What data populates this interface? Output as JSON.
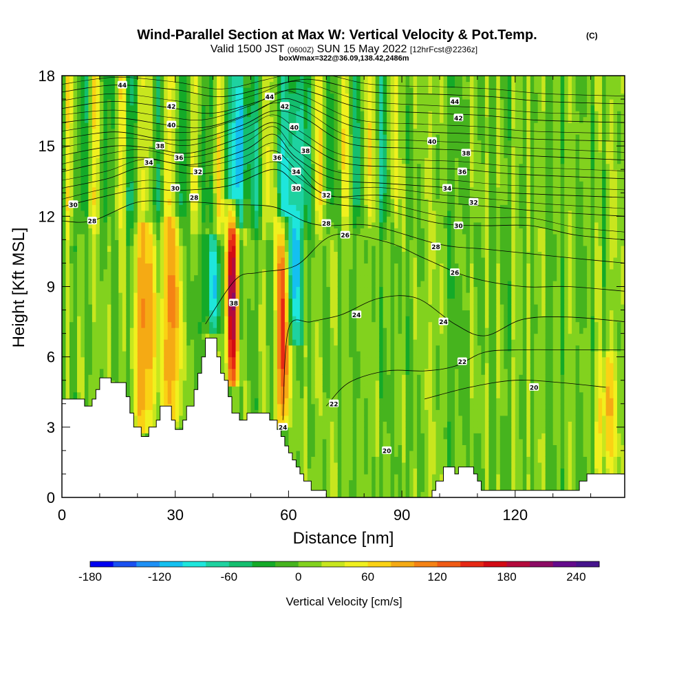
{
  "header": {
    "title": "Wind-Parallel Section at Max W: Vertical Velocity & Pot.Temp.",
    "copyright": "(C)",
    "valid_a": "Valid 1500 JST",
    "valid_b": "(0600Z)",
    "valid_c": "SUN 15 May 2022",
    "valid_d": "[12hrFcst@2236z]",
    "subline": "boxWmax=322@36.09,138.42,2486m"
  },
  "chart_data": {
    "type": "heatmap",
    "xlabel": "Distance [nm]",
    "ylabel": "Height [Kft MSL]",
    "xlim": [
      0,
      149
    ],
    "ylim": [
      0,
      18
    ],
    "x_ticks": [
      0,
      30,
      60,
      90,
      120
    ],
    "y_ticks": [
      0,
      3,
      6,
      9,
      12,
      15,
      18
    ],
    "colorbar": {
      "label": "Vertical Velocity [cm/s]",
      "min": -180,
      "max": 260,
      "step": 20,
      "tick_values": [
        -180,
        -120,
        -60,
        0,
        60,
        120,
        180,
        240
      ],
      "colors": [
        "#0000f0",
        "#1a50f0",
        "#1e90f5",
        "#14c0f0",
        "#1ee6dc",
        "#1ed2a0",
        "#14be6e",
        "#14aa28",
        "#46b41e",
        "#82d21e",
        "#c8e61e",
        "#f0f01e",
        "#fad214",
        "#f5aa14",
        "#f58214",
        "#f05a14",
        "#e62814",
        "#d20a14",
        "#b40a3c",
        "#8c0a64",
        "#640a8c",
        "#46148c"
      ]
    },
    "terrain_kft": [
      [
        0,
        4.2
      ],
      [
        6,
        4.2
      ],
      [
        6,
        3.9
      ],
      [
        8,
        3.9
      ],
      [
        8,
        4.2
      ],
      [
        9,
        4.2
      ],
      [
        9,
        4.6
      ],
      [
        10,
        4.6
      ],
      [
        10,
        5.1
      ],
      [
        13,
        5.1
      ],
      [
        13,
        4.9
      ],
      [
        17,
        4.9
      ],
      [
        17,
        4.3
      ],
      [
        18,
        4.3
      ],
      [
        18,
        3.6
      ],
      [
        19,
        3.6
      ],
      [
        19,
        3.0
      ],
      [
        21,
        3.0
      ],
      [
        21,
        2.6
      ],
      [
        23,
        2.6
      ],
      [
        23,
        3.0
      ],
      [
        25,
        3.0
      ],
      [
        25,
        3.3
      ],
      [
        26,
        3.3
      ],
      [
        26,
        3.9
      ],
      [
        29,
        3.9
      ],
      [
        29,
        3.3
      ],
      [
        30,
        3.3
      ],
      [
        30,
        2.9
      ],
      [
        32,
        2.9
      ],
      [
        32,
        3.3
      ],
      [
        33,
        3.3
      ],
      [
        33,
        3.9
      ],
      [
        35,
        3.9
      ],
      [
        35,
        4.6
      ],
      [
        36,
        4.6
      ],
      [
        36,
        5.3
      ],
      [
        37,
        5.3
      ],
      [
        37,
        6.0
      ],
      [
        38,
        6.0
      ],
      [
        38,
        6.8
      ],
      [
        41,
        6.8
      ],
      [
        41,
        6.0
      ],
      [
        42,
        6.0
      ],
      [
        42,
        5.3
      ],
      [
        43,
        5.3
      ],
      [
        43,
        5.0
      ],
      [
        44,
        5.0
      ],
      [
        44,
        4.3
      ],
      [
        45,
        4.3
      ],
      [
        45,
        3.6
      ],
      [
        46,
        3.6
      ],
      [
        46,
        3.6
      ],
      [
        47,
        3.6
      ],
      [
        47,
        3.3
      ],
      [
        49,
        3.3
      ],
      [
        49,
        3.6
      ],
      [
        50,
        3.6
      ],
      [
        50,
        3.6
      ],
      [
        55,
        3.6
      ],
      [
        55,
        3.3
      ],
      [
        57,
        3.3
      ],
      [
        57,
        2.9
      ],
      [
        58,
        2.9
      ],
      [
        58,
        2.6
      ],
      [
        59,
        2.6
      ],
      [
        59,
        2.2
      ],
      [
        60,
        2.2
      ],
      [
        60,
        1.9
      ],
      [
        61,
        1.9
      ],
      [
        61,
        1.6
      ],
      [
        62,
        1.6
      ],
      [
        62,
        1.3
      ],
      [
        63,
        1.3
      ],
      [
        63,
        1.0
      ],
      [
        64,
        1.0
      ],
      [
        64,
        0.7
      ],
      [
        66,
        0.7
      ],
      [
        66,
        0.3
      ],
      [
        70,
        0.3
      ],
      [
        70,
        0.0
      ],
      [
        98,
        0.0
      ],
      [
        98,
        0.3
      ],
      [
        99,
        0.3
      ],
      [
        99,
        0.7
      ],
      [
        101,
        0.7
      ],
      [
        101,
        1.3
      ],
      [
        104,
        1.3
      ],
      [
        104,
        1.0
      ],
      [
        105,
        1.0
      ],
      [
        105,
        1.3
      ],
      [
        109,
        1.3
      ],
      [
        109,
        1.0
      ],
      [
        110,
        1.0
      ],
      [
        110,
        0.7
      ],
      [
        111,
        0.7
      ],
      [
        111,
        0.3
      ],
      [
        137,
        0.3
      ],
      [
        137,
        0.7
      ],
      [
        139,
        0.7
      ],
      [
        139,
        1.0
      ],
      [
        149,
        1.0
      ]
    ],
    "velocity_features": [
      {
        "x": 22,
        "z_bottom": 2.6,
        "z_top": 11.5,
        "w_max": 110
      },
      {
        "x": 29,
        "z_bottom": 2.9,
        "z_top": 11.8,
        "w_max": 100
      },
      {
        "x": 40,
        "z_bottom": 6.8,
        "z_top": 11.0,
        "w_max": -100
      },
      {
        "x": 45,
        "z_bottom": 4.6,
        "z_top": 12.5,
        "w_max": 200
      },
      {
        "x": 58.5,
        "z_bottom": 2.9,
        "z_top": 11.8,
        "w_max": 170
      },
      {
        "x": 61.5,
        "z_bottom": 6.5,
        "z_top": 18.0,
        "w_max": -130
      },
      {
        "x": 47.5,
        "z_bottom": 11.5,
        "z_top": 18.0,
        "w_max": -130
      },
      {
        "x": 144,
        "z_bottom": 1.0,
        "z_top": 6.0,
        "w_max": 70
      }
    ],
    "isentropes": [
      {
        "theta": 20,
        "points": [
          [
            96,
            4.2
          ],
          [
            108,
            4.7
          ],
          [
            120,
            5.0
          ],
          [
            132,
            4.9
          ],
          [
            144,
            4.7
          ]
        ]
      },
      {
        "theta": 22,
        "points": [
          [
            70,
            3.9
          ],
          [
            76,
            4.9
          ],
          [
            86,
            5.4
          ],
          [
            96,
            5.4
          ],
          [
            104,
            5.6
          ],
          [
            112,
            6.2
          ],
          [
            122,
            6.3
          ],
          [
            134,
            6.3
          ],
          [
            149,
            6.3
          ]
        ]
      },
      {
        "theta": 24,
        "points": [
          [
            58.5,
            3.3
          ],
          [
            60,
            7.2
          ],
          [
            66,
            7.5
          ],
          [
            74,
            7.8
          ],
          [
            84,
            8.5
          ],
          [
            94,
            8.5
          ],
          [
            104,
            7.4
          ],
          [
            112,
            6.9
          ],
          [
            122,
            7.6
          ],
          [
            134,
            7.7
          ],
          [
            149,
            7.5
          ]
        ]
      },
      {
        "theta": 26,
        "points": [
          [
            38,
            7.4
          ],
          [
            46,
            9.3
          ],
          [
            52,
            9.6
          ],
          [
            62,
            9.9
          ],
          [
            72,
            11.2
          ],
          [
            86,
            10.9
          ],
          [
            96,
            10.2
          ],
          [
            108,
            9.4
          ],
          [
            122,
            9.0
          ],
          [
            134,
            9.0
          ],
          [
            149,
            8.8
          ]
        ]
      },
      {
        "theta": 28,
        "points": [
          [
            0,
            11.8
          ],
          [
            8,
            11.8
          ],
          [
            20,
            12.6
          ],
          [
            30,
            12.6
          ],
          [
            36,
            12.6
          ],
          [
            44,
            12.5
          ],
          [
            56,
            12.4
          ],
          [
            64,
            11.8
          ],
          [
            70,
            11.6
          ],
          [
            82,
            11.6
          ],
          [
            100,
            10.8
          ],
          [
            112,
            10.6
          ],
          [
            124,
            10.4
          ],
          [
            136,
            10.2
          ],
          [
            149,
            10.0
          ]
        ]
      },
      {
        "theta": 30,
        "points": [
          [
            0,
            12.4
          ],
          [
            10,
            12.8
          ],
          [
            22,
            13.2
          ],
          [
            30,
            13.1
          ],
          [
            44,
            13.3
          ],
          [
            56,
            14.0
          ],
          [
            62,
            13.4
          ],
          [
            70,
            12.6
          ],
          [
            84,
            12.3
          ],
          [
            100,
            11.7
          ],
          [
            112,
            11.6
          ],
          [
            124,
            11.6
          ],
          [
            136,
            11.2
          ],
          [
            149,
            11.0
          ]
        ]
      },
      {
        "theta": 32,
        "points": [
          [
            0,
            13.2
          ],
          [
            12,
            13.6
          ],
          [
            22,
            14.1
          ],
          [
            36,
            13.8
          ],
          [
            48,
            14.2
          ],
          [
            56,
            14.8
          ],
          [
            62,
            14.0
          ],
          [
            70,
            12.9
          ],
          [
            84,
            12.9
          ],
          [
            100,
            12.6
          ],
          [
            114,
            12.4
          ],
          [
            128,
            12.2
          ],
          [
            149,
            12.0
          ]
        ]
      },
      {
        "theta": 34,
        "points": [
          [
            0,
            13.9
          ],
          [
            14,
            14.4
          ],
          [
            22,
            14.5
          ],
          [
            34,
            14.2
          ],
          [
            48,
            14.8
          ],
          [
            56,
            15.5
          ],
          [
            62,
            14.5
          ],
          [
            72,
            13.6
          ],
          [
            86,
            13.4
          ],
          [
            104,
            13.2
          ],
          [
            118,
            13.0
          ],
          [
            149,
            12.8
          ]
        ]
      },
      {
        "theta": 36,
        "points": [
          [
            0,
            14.6
          ],
          [
            14,
            15.0
          ],
          [
            24,
            14.9
          ],
          [
            34,
            14.7
          ],
          [
            48,
            15.4
          ],
          [
            56,
            16.0
          ],
          [
            63,
            15.3
          ],
          [
            74,
            14.3
          ],
          [
            90,
            14.1
          ],
          [
            106,
            14.0
          ],
          [
            120,
            13.8
          ],
          [
            149,
            13.6
          ]
        ]
      },
      {
        "theta": 38,
        "points": [
          [
            0,
            15.3
          ],
          [
            14,
            15.6
          ],
          [
            26,
            15.3
          ],
          [
            36,
            15.3
          ],
          [
            48,
            15.9
          ],
          [
            56,
            16.5
          ],
          [
            64,
            16.2
          ],
          [
            76,
            15.1
          ],
          [
            94,
            14.9
          ],
          [
            108,
            14.8
          ],
          [
            122,
            14.6
          ],
          [
            149,
            14.4
          ]
        ]
      },
      {
        "theta": 40,
        "points": [
          [
            0,
            16.0
          ],
          [
            14,
            16.2
          ],
          [
            28,
            15.9
          ],
          [
            38,
            15.8
          ],
          [
            50,
            16.4
          ],
          [
            58,
            17.0
          ],
          [
            64,
            16.8
          ],
          [
            78,
            15.8
          ],
          [
            96,
            15.6
          ],
          [
            110,
            15.5
          ],
          [
            124,
            15.3
          ],
          [
            149,
            15.2
          ]
        ]
      },
      {
        "theta": 42,
        "points": [
          [
            0,
            16.6
          ],
          [
            14,
            16.9
          ],
          [
            30,
            16.6
          ],
          [
            40,
            16.4
          ],
          [
            52,
            16.9
          ],
          [
            60,
            17.4
          ],
          [
            66,
            17.3
          ],
          [
            80,
            16.6
          ],
          [
            98,
            16.4
          ],
          [
            112,
            16.3
          ],
          [
            126,
            16.1
          ],
          [
            149,
            16.0
          ]
        ]
      },
      {
        "theta": 44,
        "points": [
          [
            0,
            17.3
          ],
          [
            14,
            17.6
          ],
          [
            30,
            17.4
          ],
          [
            42,
            17.1
          ],
          [
            54,
            17.5
          ],
          [
            62,
            17.8
          ],
          [
            68,
            17.8
          ],
          [
            82,
            17.3
          ],
          [
            100,
            17.2
          ],
          [
            114,
            17.1
          ],
          [
            128,
            16.9
          ],
          [
            149,
            16.8
          ]
        ]
      }
    ],
    "contour_labels": [
      {
        "text": "44",
        "x": 16,
        "y": 17.6
      },
      {
        "text": "42",
        "x": 29,
        "y": 16.7
      },
      {
        "text": "40",
        "x": 29,
        "y": 15.9
      },
      {
        "text": "38",
        "x": 26,
        "y": 15.0
      },
      {
        "text": "36",
        "x": 31,
        "y": 14.5
      },
      {
        "text": "34",
        "x": 23,
        "y": 14.3
      },
      {
        "text": "32",
        "x": 36,
        "y": 13.9
      },
      {
        "text": "30",
        "x": 30,
        "y": 13.2
      },
      {
        "text": "28",
        "x": 35,
        "y": 12.8
      },
      {
        "text": "30",
        "x": 3,
        "y": 12.5
      },
      {
        "text": "28",
        "x": 8,
        "y": 11.8
      },
      {
        "text": "44",
        "x": 55,
        "y": 17.1
      },
      {
        "text": "42",
        "x": 59,
        "y": 16.7
      },
      {
        "text": "40",
        "x": 61.5,
        "y": 15.8
      },
      {
        "text": "38",
        "x": 64.5,
        "y": 14.8
      },
      {
        "text": "36",
        "x": 57,
        "y": 14.5
      },
      {
        "text": "34",
        "x": 62,
        "y": 13.9
      },
      {
        "text": "30",
        "x": 62,
        "y": 13.2
      },
      {
        "text": "32",
        "x": 70,
        "y": 12.9
      },
      {
        "text": "28",
        "x": 70,
        "y": 11.7
      },
      {
        "text": "26",
        "x": 75,
        "y": 11.2
      },
      {
        "text": "44",
        "x": 104,
        "y": 16.9
      },
      {
        "text": "42",
        "x": 105,
        "y": 16.2
      },
      {
        "text": "40",
        "x": 98,
        "y": 15.2
      },
      {
        "text": "38",
        "x": 107,
        "y": 14.7
      },
      {
        "text": "36",
        "x": 106,
        "y": 13.9
      },
      {
        "text": "34",
        "x": 102,
        "y": 13.2
      },
      {
        "text": "32",
        "x": 109,
        "y": 12.6
      },
      {
        "text": "30",
        "x": 105,
        "y": 11.6
      },
      {
        "text": "28",
        "x": 99,
        "y": 10.7
      },
      {
        "text": "26",
        "x": 104,
        "y": 9.6
      },
      {
        "text": "24",
        "x": 78,
        "y": 7.8
      },
      {
        "text": "24",
        "x": 101,
        "y": 7.5
      },
      {
        "text": "22",
        "x": 106,
        "y": 5.8
      },
      {
        "text": "20",
        "x": 125,
        "y": 4.7
      },
      {
        "text": "22",
        "x": 72,
        "y": 4.0
      },
      {
        "text": "20",
        "x": 86,
        "y": 2.0
      },
      {
        "text": "38",
        "x": 45.5,
        "y": 8.3
      },
      {
        "text": "24",
        "x": 58.5,
        "y": 3.0
      }
    ]
  }
}
